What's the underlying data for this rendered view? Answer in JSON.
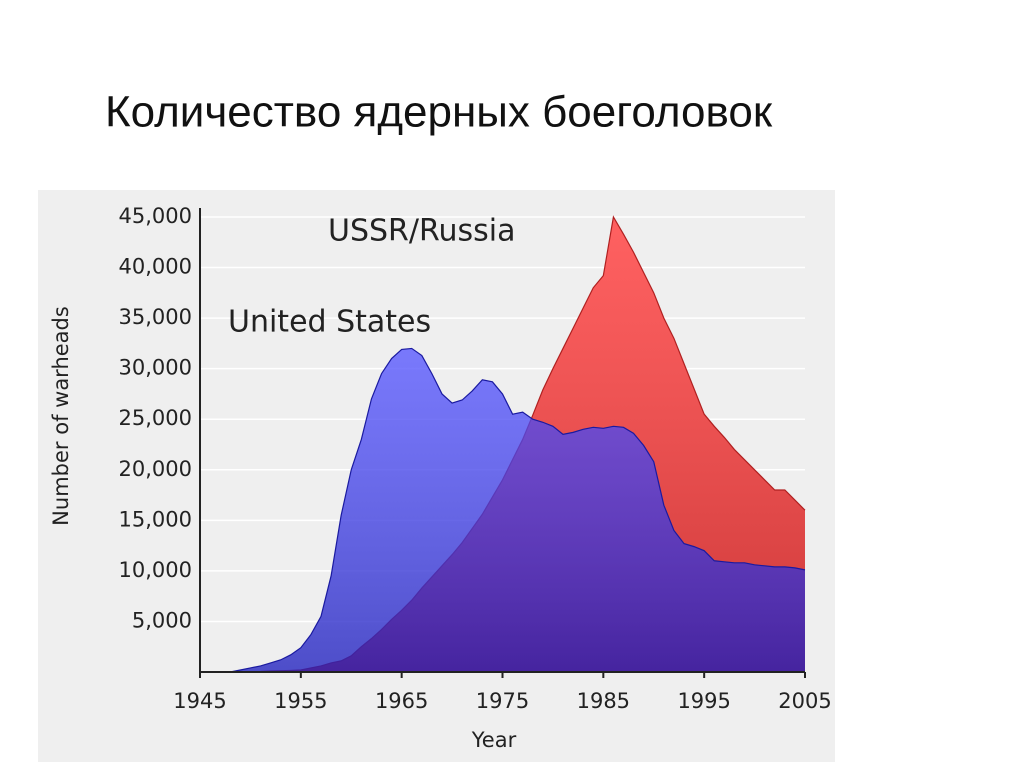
{
  "title": "Количество ядерных боеголовок",
  "chart_data": {
    "type": "area",
    "ylabel": "Number of warheads",
    "xlabel": "Year",
    "x": [
      1945,
      1946,
      1947,
      1948,
      1949,
      1950,
      1951,
      1952,
      1953,
      1954,
      1955,
      1956,
      1957,
      1958,
      1959,
      1960,
      1961,
      1962,
      1963,
      1964,
      1965,
      1966,
      1967,
      1968,
      1969,
      1970,
      1971,
      1972,
      1973,
      1974,
      1975,
      1976,
      1977,
      1978,
      1979,
      1980,
      1981,
      1982,
      1983,
      1984,
      1985,
      1986,
      1987,
      1988,
      1989,
      1990,
      1991,
      1992,
      1993,
      1994,
      1995,
      1996,
      1997,
      1998,
      1999,
      2000,
      2001,
      2002,
      2003,
      2004,
      2005
    ],
    "series": [
      {
        "name": "USSR/Russia",
        "color": "#ff3b3b",
        "values": [
          0,
          0,
          0,
          0,
          10,
          30,
          50,
          100,
          120,
          150,
          200,
          400,
          600,
          900,
          1100,
          1600,
          2500,
          3300,
          4200,
          5200,
          6100,
          7100,
          8300,
          9400,
          10500,
          11600,
          12800,
          14200,
          15600,
          17300,
          19000,
          21000,
          23000,
          25400,
          27900,
          30000,
          32000,
          34000,
          36000,
          38000,
          39200,
          45000,
          43300,
          41500,
          39500,
          37500,
          35000,
          33000,
          30500,
          28000,
          25500,
          24300,
          23200,
          22000,
          21000,
          20000,
          19000,
          18000,
          18000,
          17000,
          16000
        ]
      },
      {
        "name": "United States",
        "color": "#2a2aff",
        "values": [
          0,
          0,
          0,
          0,
          200,
          400,
          600,
          900,
          1200,
          1700,
          2400,
          3700,
          5500,
          9500,
          15500,
          20000,
          23000,
          27000,
          29500,
          31000,
          31900,
          32000,
          31300,
          29500,
          27500,
          26600,
          26900,
          27800,
          28900,
          28700,
          27500,
          25500,
          25700,
          25000,
          24700,
          24300,
          23500,
          23700,
          24000,
          24200,
          24100,
          24300,
          24200,
          23600,
          22400,
          20800,
          16500,
          14000,
          12700,
          12400,
          12000,
          11000,
          10900,
          10800,
          10800,
          10600,
          10500,
          10400,
          10400,
          10300,
          10100
        ]
      }
    ],
    "xlim": [
      1945,
      2005
    ],
    "xticks": [
      1945,
      1955,
      1965,
      1975,
      1985,
      1995,
      2005
    ],
    "ylim": [
      0,
      45000
    ],
    "yticks": [
      {
        "value": 5000,
        "label": "5,000"
      },
      {
        "value": 10000,
        "label": "10,000"
      },
      {
        "value": 15000,
        "label": "15,000"
      },
      {
        "value": 20000,
        "label": "20,000"
      },
      {
        "value": 25000,
        "label": "25,000"
      },
      {
        "value": 30000,
        "label": "30,000"
      },
      {
        "value": 35000,
        "label": "35,000"
      },
      {
        "value": 40000,
        "label": "40,000"
      },
      {
        "value": 45000,
        "label": "45,000"
      }
    ],
    "grid": true
  }
}
